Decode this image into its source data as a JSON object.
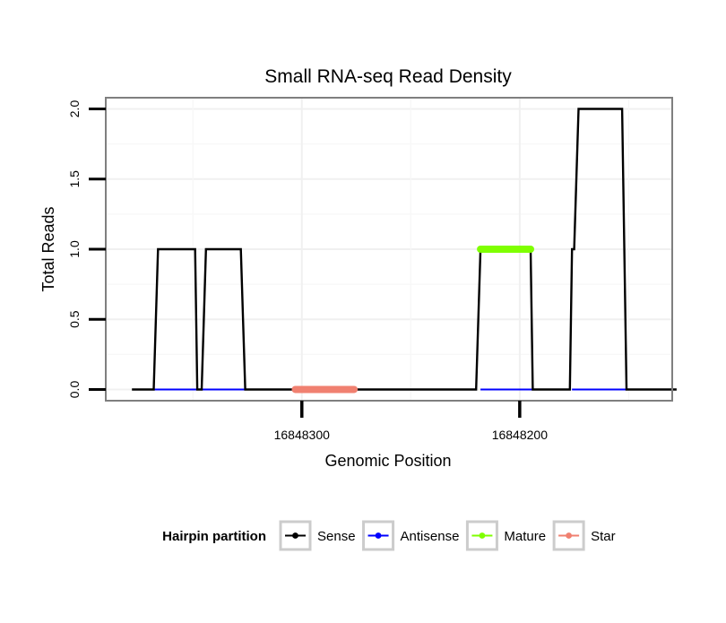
{
  "chart_data": {
    "type": "line",
    "title": "Small RNA-seq Read Density",
    "xlabel": "Genomic Position",
    "ylabel": "Total Reads",
    "x_reversed": true,
    "xlim": [
      16848390,
      16848130
    ],
    "ylim": [
      -0.08,
      2.08
    ],
    "x_ticks": [
      16848300,
      16848200
    ],
    "x_tick_labels": [
      "16848300",
      "16848200"
    ],
    "y_ticks": [
      0.0,
      0.5,
      1.0,
      1.5,
      2.0
    ],
    "y_tick_labels": [
      "0.0",
      "0.5",
      "1.0",
      "1.5",
      "2.0"
    ],
    "grid": true,
    "series": [
      {
        "name": "Sense",
        "color": "#000000",
        "x": [
          16848378,
          16848368,
          16848366,
          16848349,
          16848348,
          16848346,
          16848344,
          16848328,
          16848326,
          16848220,
          16848218,
          16848195,
          16848194,
          16848177,
          16848176,
          16848175,
          16848173,
          16848153,
          16848151,
          16848128
        ],
        "y": [
          0,
          0,
          1,
          1,
          0,
          0,
          1,
          1,
          0,
          0,
          1,
          1,
          0,
          0,
          1,
          1,
          2,
          2,
          0,
          0
        ]
      },
      {
        "name": "Antisense",
        "color": "#0000ff",
        "segments": [
          [
            16848368,
            16848326
          ],
          [
            16848218,
            16848194
          ],
          [
            16848176,
            16848151
          ]
        ],
        "y": 0
      },
      {
        "name": "Mature",
        "color": "#7fff00",
        "x": [
          16848218,
          16848195
        ],
        "y": [
          1,
          1
        ]
      },
      {
        "name": "Star",
        "color": "#f08070",
        "x": [
          16848303,
          16848276
        ],
        "y": [
          0,
          0
        ]
      }
    ],
    "legend": {
      "title": "Hairpin partition",
      "placement": "bottom",
      "entries": [
        "Sense",
        "Antisense",
        "Mature",
        "Star"
      ]
    }
  }
}
